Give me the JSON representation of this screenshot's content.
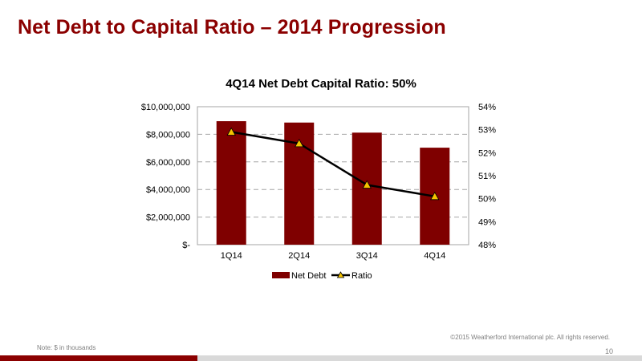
{
  "slide": {
    "title": "Net Debt to Capital Ratio – 2014 Progression",
    "copyright": "©2015 Weatherford International plc.  All rights reserved.",
    "note": "Note: $ in thousands",
    "page_number": "10"
  },
  "colors": {
    "title": "#8b0000",
    "bar": "#7f0000",
    "line": "#000000",
    "marker_fill": "#f5c400",
    "footer_red": "#8b0000",
    "footer_grey": "#d9d9d9"
  },
  "chart_data": {
    "type": "bar",
    "title": "4Q14 Net Debt Capital Ratio: 50%",
    "categories": [
      "1Q14",
      "2Q14",
      "3Q14",
      "4Q14"
    ],
    "series": [
      {
        "name": "Net Debt",
        "type": "bar",
        "axis": "left",
        "values": [
          8950000,
          8850000,
          8120000,
          7030000
        ]
      },
      {
        "name": "Ratio",
        "type": "line",
        "axis": "right",
        "marker": "triangle",
        "values": [
          52.9,
          52.4,
          50.6,
          50.1
        ]
      }
    ],
    "y_left": {
      "ylim": [
        0,
        10000000
      ],
      "ticks": [
        0,
        2000000,
        4000000,
        6000000,
        8000000,
        10000000
      ],
      "tick_labels": [
        "$-",
        "$2,000,000",
        "$4,000,000",
        "$6,000,000",
        "$8,000,000",
        "$10,000,000"
      ]
    },
    "y_right": {
      "ylim": [
        48,
        54
      ],
      "ticks": [
        48,
        49,
        50,
        51,
        52,
        53,
        54
      ],
      "tick_labels": [
        "48%",
        "49%",
        "50%",
        "51%",
        "52%",
        "53%",
        "54%"
      ]
    },
    "grid": true,
    "legend_position": "bottom"
  }
}
